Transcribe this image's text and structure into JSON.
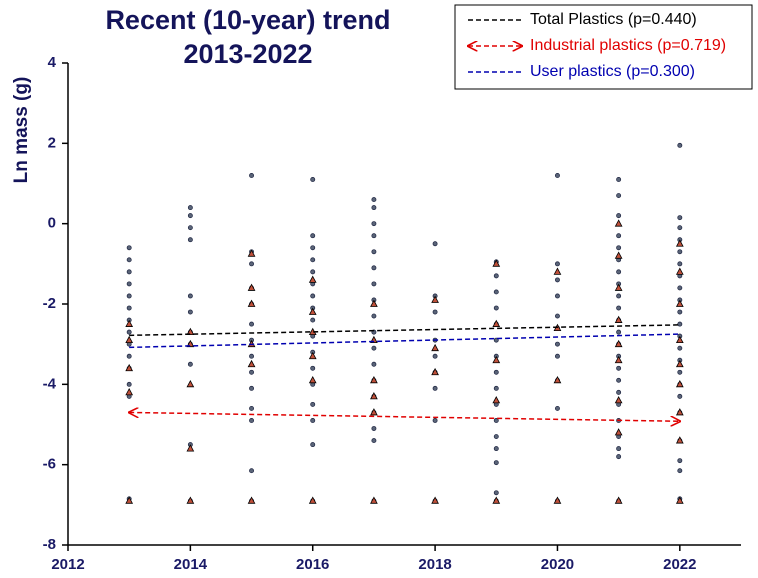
{
  "chart_data": {
    "type": "scatter",
    "title": [
      "Recent (10-year) trend",
      "2013-2022"
    ],
    "ylabel": "Ln mass (g)",
    "xlim": [
      2012,
      2023
    ],
    "ylim": [
      -8,
      4
    ],
    "xticks": [
      2012,
      2014,
      2016,
      2018,
      2020,
      2022
    ],
    "yticks": [
      -8,
      -6,
      -4,
      -2,
      0,
      2,
      4
    ],
    "legend": "upper right",
    "series": [
      {
        "name": "Total Plastics (p=0.440)",
        "color": "#000000",
        "arrows": false,
        "x": [
          2013,
          2022
        ],
        "values": [
          -2.78,
          -2.52
        ]
      },
      {
        "name": "Industrial plastics (p=0.719)",
        "color": "#e00000",
        "arrows": true,
        "x": [
          2013,
          2022
        ],
        "values": [
          -4.7,
          -4.92
        ]
      },
      {
        "name": "User plastics (p=0.300)",
        "color": "#0000b0",
        "arrows": false,
        "x": [
          2013,
          2022
        ],
        "values": [
          -3.08,
          -2.75
        ]
      }
    ],
    "scatter": [
      {
        "marker": "circle",
        "color": "#5a6478",
        "groups": [
          {
            "x": 2013,
            "values": [
              -0.6,
              -0.9,
              -1.2,
              -1.5,
              -1.8,
              -2.1,
              -2.4,
              -2.7,
              -3.0,
              -3.3,
              -3.6,
              -4.0,
              -4.3,
              -6.85
            ]
          },
          {
            "x": 2014,
            "values": [
              0.4,
              0.2,
              -0.1,
              -0.4,
              -1.8,
              -2.2,
              -2.7,
              -3.0,
              -3.5,
              -5.5,
              -6.9
            ]
          },
          {
            "x": 2015,
            "values": [
              1.2,
              -0.7,
              -1.0,
              -1.6,
              -2.0,
              -2.5,
              -2.9,
              -3.3,
              -3.7,
              -4.1,
              -4.6,
              -4.9,
              -6.15,
              -6.9
            ]
          },
          {
            "x": 2016,
            "values": [
              1.1,
              -0.3,
              -0.6,
              -0.9,
              -1.2,
              -1.5,
              -1.8,
              -2.1,
              -2.4,
              -2.8,
              -3.2,
              -3.6,
              -4.0,
              -4.5,
              -4.9,
              -5.5,
              -6.9
            ]
          },
          {
            "x": 2017,
            "values": [
              0.6,
              0.4,
              0.0,
              -0.3,
              -0.7,
              -1.1,
              -1.5,
              -1.9,
              -2.3,
              -2.7,
              -3.1,
              -3.5,
              -3.9,
              -4.3,
              -4.7,
              -5.1,
              -5.4,
              -6.9
            ]
          },
          {
            "x": 2018,
            "values": [
              -0.5,
              -1.8,
              -2.2,
              -2.9,
              -3.3,
              -3.7,
              -4.1,
              -4.9,
              -6.9
            ]
          },
          {
            "x": 2019,
            "values": [
              -0.95,
              -1.3,
              -1.7,
              -2.1,
              -2.5,
              -2.9,
              -3.3,
              -3.7,
              -4.1,
              -4.5,
              -4.9,
              -5.3,
              -5.6,
              -5.95,
              -6.7,
              -6.9
            ]
          },
          {
            "x": 2020,
            "values": [
              1.2,
              -1.0,
              -1.4,
              -1.8,
              -2.3,
              -2.6,
              -3.0,
              -3.3,
              -3.9,
              -4.6,
              -6.9
            ]
          },
          {
            "x": 2021,
            "values": [
              1.1,
              0.7,
              0.2,
              -0.3,
              -0.6,
              -0.9,
              -1.2,
              -1.5,
              -1.8,
              -2.1,
              -2.4,
              -2.7,
              -3.0,
              -3.3,
              -3.6,
              -3.9,
              -4.2,
              -4.5,
              -4.9,
              -5.3,
              -5.6,
              -5.8,
              -6.9
            ]
          },
          {
            "x": 2022,
            "values": [
              1.95,
              0.15,
              -0.1,
              -0.4,
              -0.7,
              -1.0,
              -1.3,
              -1.6,
              -1.9,
              -2.2,
              -2.5,
              -2.8,
              -3.1,
              -3.4,
              -3.7,
              -4.0,
              -4.3,
              -4.7,
              -5.4,
              -5.9,
              -6.15,
              -6.85
            ]
          }
        ]
      },
      {
        "marker": "triangle",
        "color": "#c0503a",
        "groups": [
          {
            "x": 2013,
            "values": [
              -2.5,
              -2.9,
              -3.6,
              -4.2,
              -6.9
            ]
          },
          {
            "x": 2014,
            "values": [
              -2.7,
              -3.0,
              -4.0,
              -5.6,
              -6.9
            ]
          },
          {
            "x": 2015,
            "values": [
              -0.75,
              -1.6,
              -2.0,
              -3.0,
              -3.5,
              -6.9
            ]
          },
          {
            "x": 2016,
            "values": [
              -1.4,
              -2.2,
              -2.7,
              -3.3,
              -3.9,
              -6.9
            ]
          },
          {
            "x": 2017,
            "values": [
              -2.0,
              -2.9,
              -3.9,
              -4.3,
              -4.7,
              -6.9
            ]
          },
          {
            "x": 2018,
            "values": [
              -1.9,
              -3.1,
              -3.7,
              -6.9
            ]
          },
          {
            "x": 2019,
            "values": [
              -1.0,
              -2.5,
              -3.4,
              -4.4,
              -6.9
            ]
          },
          {
            "x": 2020,
            "values": [
              -1.2,
              -2.6,
              -3.9,
              -6.9
            ]
          },
          {
            "x": 2021,
            "values": [
              0.0,
              -0.8,
              -1.6,
              -2.4,
              -3.0,
              -3.4,
              -4.4,
              -5.2,
              -6.9
            ]
          },
          {
            "x": 2022,
            "values": [
              -0.5,
              -1.2,
              -2.0,
              -2.9,
              -3.5,
              -4.0,
              -4.7,
              -5.4,
              -6.9
            ]
          }
        ]
      }
    ]
  }
}
